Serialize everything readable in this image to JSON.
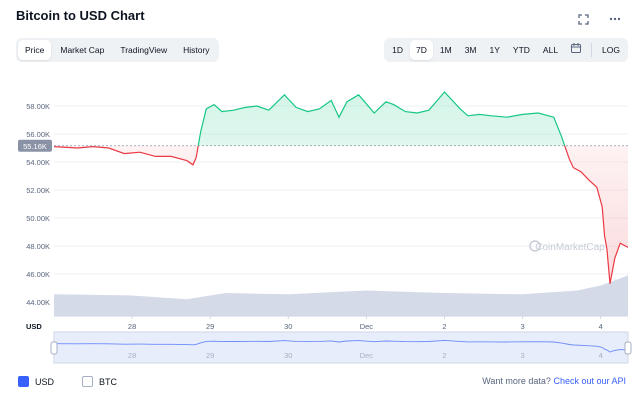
{
  "header": {
    "title": "Bitcoin to USD Chart"
  },
  "icons": {
    "fullscreen": "fullscreen-icon",
    "more": "more-icon",
    "calendar": "calendar-icon"
  },
  "tabs": [
    {
      "label": "Price",
      "active": true
    },
    {
      "label": "Market Cap",
      "active": false
    },
    {
      "label": "TradingView",
      "active": false
    },
    {
      "label": "History",
      "active": false
    }
  ],
  "ranges": [
    {
      "label": "1D",
      "active": false
    },
    {
      "label": "7D",
      "active": true
    },
    {
      "label": "1M",
      "active": false
    },
    {
      "label": "3M",
      "active": false
    },
    {
      "label": "1Y",
      "active": false
    },
    {
      "label": "YTD",
      "active": false
    },
    {
      "label": "ALL",
      "active": false
    }
  ],
  "log_label": "LOG",
  "colors": {
    "up": "#16c784",
    "down": "#ea3943",
    "accent": "#3861fb",
    "volume": "#cfd6e4"
  },
  "watermark": "CoinMarketCap",
  "chart_data": {
    "type": "line",
    "title": "Bitcoin to USD Chart",
    "ylabel": "",
    "currency_label": "USD",
    "baseline_label": "55.16K",
    "baseline": 55160,
    "ylim": [
      43000,
      59500
    ],
    "yticks": [
      "44.00K",
      "46.00K",
      "48.00K",
      "50.00K",
      "52.00K",
      "54.00K",
      "56.00K",
      "58.00K"
    ],
    "ytick_values": [
      44000,
      46000,
      48000,
      50000,
      52000,
      54000,
      56000,
      58000
    ],
    "xticks": [
      "28",
      "29",
      "30",
      "Dec",
      "2",
      "3",
      "4"
    ],
    "xtick_days": [
      1,
      2,
      3,
      4,
      5,
      6,
      7
    ],
    "x_days": [
      0,
      0.3,
      0.5,
      0.7,
      0.9,
      1.1,
      1.3,
      1.5,
      1.7,
      1.78,
      1.82,
      1.88,
      1.95,
      2.05,
      2.15,
      2.3,
      2.45,
      2.6,
      2.75,
      2.95,
      3.1,
      3.25,
      3.4,
      3.55,
      3.65,
      3.75,
      3.9,
      4.1,
      4.25,
      4.35,
      4.5,
      4.65,
      4.8,
      5.0,
      5.2,
      5.3,
      5.45,
      5.6,
      5.8,
      6.0,
      6.2,
      6.4,
      6.5,
      6.6,
      6.65,
      6.75,
      6.85,
      6.95,
      7.02,
      7.05,
      7.08,
      7.12,
      7.18,
      7.25,
      7.35
    ],
    "y_price": [
      55100,
      55000,
      55100,
      55000,
      54600,
      54700,
      54400,
      54400,
      54100,
      53800,
      54300,
      56200,
      57800,
      58100,
      57600,
      57700,
      57900,
      58000,
      57700,
      58800,
      57900,
      57600,
      57800,
      58400,
      57200,
      58300,
      58800,
      57500,
      58300,
      58100,
      57600,
      57500,
      57700,
      59000,
      57800,
      57300,
      57400,
      57300,
      57200,
      57400,
      57500,
      57200,
      55800,
      54200,
      53600,
      53300,
      52700,
      52200,
      50800,
      48700,
      47800,
      45300,
      47100,
      48200,
      47900
    ],
    "volume_note": "shaded volume area along bottom",
    "navigator_label_days": [
      "28",
      "29",
      "30",
      "Dec",
      "2",
      "3",
      "4"
    ]
  },
  "legend": [
    {
      "label": "USD",
      "checked": true
    },
    {
      "label": "BTC",
      "checked": false
    }
  ],
  "api": {
    "prefix": "Want more data?",
    "link": "Check out our API"
  }
}
